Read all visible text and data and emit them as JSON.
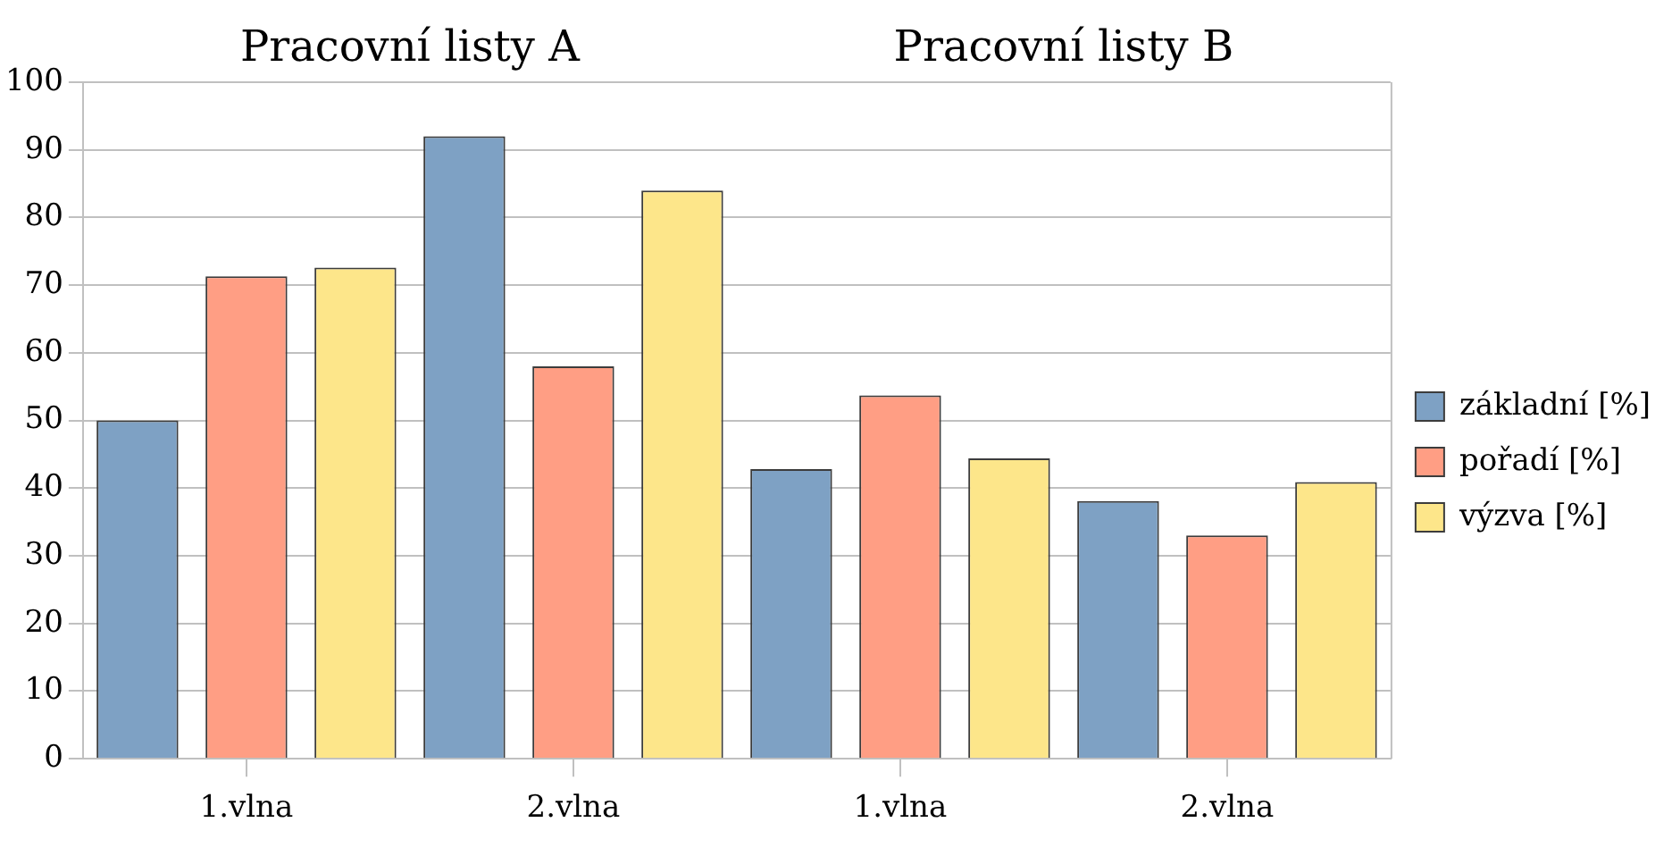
{
  "chart_data": {
    "type": "bar",
    "annotations": [
      "Pracovní listy A",
      "Pracovní listy B"
    ],
    "categories": [
      "1.vlna",
      "2.vlna",
      "1.vlna",
      "2.vlna"
    ],
    "series": [
      {
        "name": "základní [%]",
        "color": "#7ea1c4",
        "values": [
          50,
          92,
          42.8,
          38.1
        ]
      },
      {
        "name": "pořadí [%]",
        "color": "#ff9e84",
        "values": [
          71.3,
          58,
          53.7,
          33
        ]
      },
      {
        "name": "výzva [%]",
        "color": "#fde68a",
        "values": [
          72.6,
          84,
          44.4,
          40.9
        ]
      }
    ],
    "ylim": [
      0,
      100
    ],
    "yticks": [
      0,
      10,
      20,
      30,
      40,
      50,
      60,
      70,
      80,
      90,
      100
    ],
    "grid": "y",
    "legend": "right"
  }
}
